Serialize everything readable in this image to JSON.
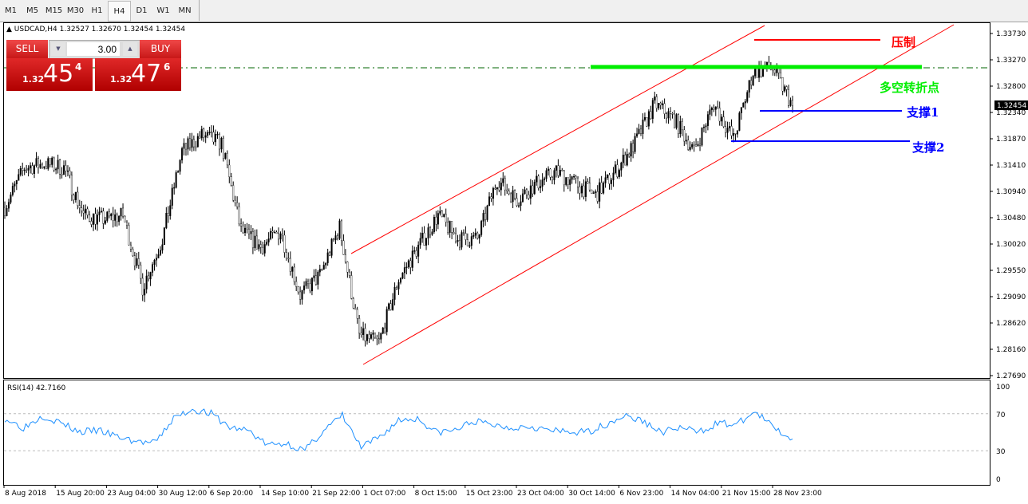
{
  "timeframe_tabs": [
    "M1",
    "M5",
    "M15",
    "M30",
    "H1",
    "H4",
    "D1",
    "W1",
    "MN"
  ],
  "active_timeframe": "H4",
  "chart_title": "USDCAD,H4  1.32527 1.32670 1.32454 1.32454",
  "trade_panel": {
    "sell_label": "SELL",
    "buy_label": "BUY",
    "lot": "3.00",
    "sell_prefix": "1.32",
    "sell_big": "45",
    "sell_sup": "4",
    "buy_prefix": "1.32",
    "buy_big": "47",
    "buy_sup": "6"
  },
  "annotations": {
    "resistance": "压制",
    "pivot": "多空转折点",
    "support1": "支撑1",
    "support2": "支撑2"
  },
  "colors": {
    "resistance": "#ff0000",
    "pivot": "#00ee00",
    "support": "#0000ff",
    "channel": "#ff0000",
    "rsi": "#1e90ff",
    "bid_line": "#006400"
  },
  "chart_data": {
    "type": "candlestick",
    "symbol": "USDCAD",
    "timeframe": "H4",
    "price_ticks": [
      "1.33730",
      "1.33270",
      "1.32800",
      "1.32340",
      "1.31870",
      "1.31410",
      "1.30940",
      "1.30480",
      "1.30020",
      "1.29550",
      "1.29090",
      "1.28620",
      "1.28160",
      "1.27690"
    ],
    "current_price": "1.32454",
    "ylim": [
      1.2769,
      1.3373
    ],
    "approx_close_path": [
      1.3066,
      1.3136,
      1.3143,
      1.3136,
      1.3052,
      1.3045,
      1.3052,
      1.2925,
      1.301,
      1.3165,
      1.3193,
      1.3179,
      1.3024,
      1.2996,
      1.3024,
      1.2911,
      1.2946,
      1.3031,
      1.284,
      1.2827,
      1.2939,
      1.2996,
      1.3052,
      1.301,
      1.301,
      1.3115,
      1.308,
      1.3108,
      1.3129,
      1.3108,
      1.3087,
      1.3129,
      1.3179,
      1.3249,
      1.3221,
      1.3165,
      1.3249,
      1.3186,
      1.3305,
      1.3312,
      1.32454
    ],
    "time_ticks": [
      "8 Aug 2018",
      "15 Aug 20:00",
      "23 Aug 04:00",
      "30 Aug 12:00",
      "6 Sep 20:00",
      "14 Sep 10:00",
      "21 Sep 22:00",
      "1 Oct 07:00",
      "8 Oct 15:00",
      "15 Oct 23:00",
      "23 Oct 04:00",
      "30 Oct 14:00",
      "6 Nov 23:00",
      "14 Nov 04:00",
      "21 Nov 15:00",
      "28 Nov 23:00"
    ],
    "rsi": {
      "label": "RSI(14) 42.7160",
      "ticks": [
        "100",
        "70",
        "30",
        "0"
      ],
      "levels": [
        70,
        30
      ],
      "ylim": [
        0,
        100
      ],
      "approx_values": [
        65,
        55,
        68,
        60,
        50,
        52,
        45,
        40,
        38,
        65,
        75,
        70,
        55,
        52,
        36,
        38,
        30,
        52,
        68,
        33,
        45,
        63,
        65,
        50,
        52,
        62,
        58,
        55,
        57,
        52,
        50,
        50,
        58,
        68,
        62,
        50,
        55,
        50,
        60,
        58,
        72,
        55,
        42.7
      ]
    }
  }
}
